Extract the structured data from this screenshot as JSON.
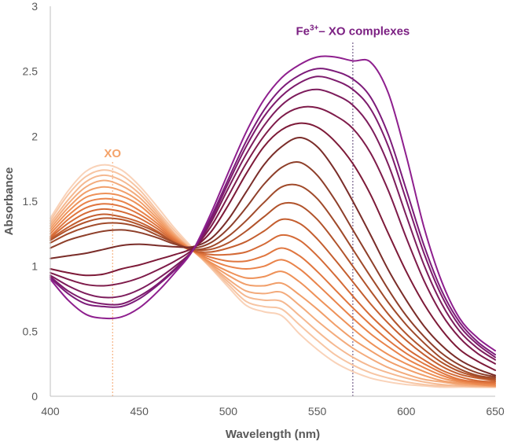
{
  "chart_data": {
    "type": "line",
    "title": "",
    "xlabel": "Wavelength (nm)",
    "ylabel": "Absorbance",
    "xlim": [
      400,
      650
    ],
    "ylim": [
      0,
      3
    ],
    "xticks": [
      400,
      450,
      500,
      550,
      600,
      650
    ],
    "yticks": [
      0,
      0.5,
      1,
      1.5,
      2,
      2.5,
      3
    ],
    "ytick_labels": [
      "0",
      "0.5",
      "1",
      "1.5",
      "2",
      "2.5",
      "3"
    ],
    "grid": false,
    "legend": "none",
    "x": [
      400,
      410,
      420,
      430,
      440,
      450,
      460,
      470,
      480,
      490,
      500,
      510,
      520,
      530,
      540,
      550,
      560,
      570,
      580,
      590,
      600,
      610,
      620,
      630,
      640,
      650
    ],
    "annotations": [
      {
        "label_parts": [
          "XO"
        ],
        "x": 435,
        "y_text": 1.84,
        "color": "#f4a36a"
      },
      {
        "label_parts": [
          "Fe",
          "3+",
          "– XO complexes"
        ],
        "x": 570,
        "y_text": 2.78,
        "color": "#7b1f82"
      }
    ],
    "reference_lines": [
      {
        "x": 435,
        "color": "#f4a36a"
      },
      {
        "x": 570,
        "color": "#5a3f73"
      }
    ],
    "series": [
      {
        "name": "s1",
        "color": "#f9d2b8",
        "values": [
          1.37,
          1.58,
          1.73,
          1.78,
          1.74,
          1.62,
          1.46,
          1.29,
          1.14,
          0.99,
          0.84,
          0.7,
          0.65,
          0.62,
          0.48,
          0.36,
          0.26,
          0.19,
          0.14,
          0.11,
          0.09,
          0.08,
          0.07,
          0.07,
          0.07,
          0.07
        ]
      },
      {
        "name": "s2",
        "color": "#f7c5a3",
        "values": [
          1.35,
          1.55,
          1.69,
          1.74,
          1.7,
          1.59,
          1.43,
          1.27,
          1.13,
          0.99,
          0.86,
          0.73,
          0.69,
          0.67,
          0.55,
          0.43,
          0.32,
          0.24,
          0.18,
          0.14,
          0.11,
          0.09,
          0.08,
          0.08,
          0.07,
          0.07
        ]
      },
      {
        "name": "s3",
        "color": "#f5b890",
        "values": [
          1.33,
          1.51,
          1.65,
          1.7,
          1.66,
          1.56,
          1.41,
          1.25,
          1.12,
          1.0,
          0.88,
          0.77,
          0.74,
          0.73,
          0.62,
          0.5,
          0.39,
          0.3,
          0.23,
          0.18,
          0.14,
          0.11,
          0.09,
          0.08,
          0.08,
          0.07
        ]
      },
      {
        "name": "s4",
        "color": "#f3ab7c",
        "values": [
          1.31,
          1.48,
          1.61,
          1.66,
          1.62,
          1.53,
          1.39,
          1.24,
          1.12,
          1.01,
          0.9,
          0.81,
          0.79,
          0.8,
          0.7,
          0.58,
          0.47,
          0.37,
          0.29,
          0.22,
          0.17,
          0.13,
          0.11,
          0.09,
          0.08,
          0.08
        ]
      },
      {
        "name": "s5",
        "color": "#f19e69",
        "values": [
          1.29,
          1.45,
          1.57,
          1.61,
          1.58,
          1.5,
          1.37,
          1.23,
          1.12,
          1.02,
          0.93,
          0.86,
          0.85,
          0.87,
          0.78,
          0.67,
          0.55,
          0.44,
          0.35,
          0.27,
          0.21,
          0.16,
          0.12,
          0.1,
          0.09,
          0.08
        ]
      },
      {
        "name": "s6",
        "color": "#ee9158",
        "values": [
          1.27,
          1.42,
          1.53,
          1.56,
          1.54,
          1.47,
          1.35,
          1.22,
          1.12,
          1.03,
          0.96,
          0.91,
          0.92,
          0.96,
          0.88,
          0.76,
          0.64,
          0.52,
          0.41,
          0.32,
          0.25,
          0.19,
          0.14,
          0.11,
          0.09,
          0.08
        ]
      },
      {
        "name": "s7",
        "color": "#e9834a",
        "values": [
          1.25,
          1.39,
          1.49,
          1.52,
          1.5,
          1.43,
          1.33,
          1.21,
          1.12,
          1.05,
          1.0,
          0.98,
          1.0,
          1.05,
          0.98,
          0.86,
          0.73,
          0.6,
          0.48,
          0.38,
          0.29,
          0.22,
          0.16,
          0.12,
          0.1,
          0.09
        ]
      },
      {
        "name": "s8",
        "color": "#e0763f",
        "values": [
          1.23,
          1.36,
          1.45,
          1.48,
          1.46,
          1.4,
          1.31,
          1.2,
          1.12,
          1.07,
          1.04,
          1.04,
          1.08,
          1.14,
          1.08,
          0.96,
          0.82,
          0.68,
          0.55,
          0.43,
          0.33,
          0.25,
          0.18,
          0.13,
          0.11,
          0.1
        ]
      },
      {
        "name": "s9",
        "color": "#d46a36",
        "values": [
          1.22,
          1.33,
          1.41,
          1.44,
          1.42,
          1.37,
          1.29,
          1.19,
          1.12,
          1.09,
          1.09,
          1.11,
          1.17,
          1.24,
          1.2,
          1.08,
          0.93,
          0.77,
          0.62,
          0.49,
          0.37,
          0.28,
          0.2,
          0.15,
          0.12,
          0.11
        ]
      },
      {
        "name": "s10",
        "color": "#c45e2f",
        "values": [
          1.21,
          1.3,
          1.37,
          1.4,
          1.38,
          1.34,
          1.27,
          1.18,
          1.12,
          1.11,
          1.14,
          1.19,
          1.27,
          1.36,
          1.33,
          1.21,
          1.05,
          0.88,
          0.71,
          0.56,
          0.43,
          0.32,
          0.23,
          0.17,
          0.14,
          0.12
        ]
      },
      {
        "name": "s11",
        "color": "#b1532b",
        "values": [
          1.2,
          1.28,
          1.34,
          1.37,
          1.36,
          1.32,
          1.26,
          1.18,
          1.13,
          1.13,
          1.18,
          1.27,
          1.38,
          1.48,
          1.47,
          1.36,
          1.19,
          1.0,
          0.81,
          0.63,
          0.48,
          0.36,
          0.26,
          0.19,
          0.15,
          0.13
        ]
      },
      {
        "name": "s12",
        "color": "#a04a2a",
        "values": [
          1.18,
          1.25,
          1.3,
          1.33,
          1.33,
          1.3,
          1.24,
          1.18,
          1.13,
          1.15,
          1.23,
          1.35,
          1.49,
          1.61,
          1.62,
          1.52,
          1.34,
          1.13,
          0.92,
          0.72,
          0.55,
          0.41,
          0.29,
          0.21,
          0.16,
          0.14
        ]
      },
      {
        "name": "s13",
        "color": "#8e3f2a",
        "values": [
          1.14,
          1.2,
          1.24,
          1.27,
          1.28,
          1.26,
          1.22,
          1.17,
          1.14,
          1.18,
          1.29,
          1.45,
          1.63,
          1.76,
          1.8,
          1.7,
          1.51,
          1.28,
          1.05,
          0.82,
          0.62,
          0.46,
          0.33,
          0.24,
          0.18,
          0.15
        ]
      },
      {
        "name": "s14",
        "color": "#7a2d29",
        "values": [
          1.06,
          1.08,
          1.1,
          1.13,
          1.16,
          1.17,
          1.16,
          1.15,
          1.15,
          1.21,
          1.36,
          1.57,
          1.78,
          1.92,
          1.99,
          1.92,
          1.74,
          1.5,
          1.24,
          0.97,
          0.74,
          0.54,
          0.39,
          0.28,
          0.21,
          0.16
        ]
      },
      {
        "name": "s15",
        "color": "#7d1a38",
        "values": [
          0.98,
          0.95,
          0.93,
          0.94,
          0.98,
          1.01,
          1.05,
          1.09,
          1.14,
          1.26,
          1.47,
          1.71,
          1.92,
          2.05,
          2.1,
          2.07,
          1.96,
          1.79,
          1.55,
          1.25,
          0.96,
          0.71,
          0.51,
          0.36,
          0.27,
          0.2
        ]
      },
      {
        "name": "s16",
        "color": "#7e1b4a",
        "values": [
          0.95,
          0.9,
          0.86,
          0.85,
          0.87,
          0.91,
          0.97,
          1.04,
          1.13,
          1.3,
          1.54,
          1.79,
          2.0,
          2.15,
          2.22,
          2.22,
          2.16,
          2.06,
          1.87,
          1.58,
          1.22,
          0.89,
          0.63,
          0.45,
          0.33,
          0.25
        ]
      },
      {
        "name": "s17",
        "color": "#7d1c5c",
        "values": [
          0.93,
          0.85,
          0.79,
          0.76,
          0.77,
          0.82,
          0.9,
          1.0,
          1.12,
          1.33,
          1.6,
          1.86,
          2.08,
          2.24,
          2.33,
          2.36,
          2.32,
          2.24,
          2.07,
          1.78,
          1.39,
          1.01,
          0.71,
          0.5,
          0.37,
          0.28
        ]
      },
      {
        "name": "s18",
        "color": "#7d1b6c",
        "values": [
          0.92,
          0.81,
          0.74,
          0.71,
          0.71,
          0.77,
          0.86,
          0.98,
          1.12,
          1.35,
          1.64,
          1.92,
          2.15,
          2.31,
          2.41,
          2.46,
          2.43,
          2.36,
          2.21,
          1.92,
          1.51,
          1.1,
          0.77,
          0.54,
          0.4,
          0.3
        ]
      },
      {
        "name": "s19",
        "color": "#7c1b79",
        "values": [
          0.91,
          0.79,
          0.71,
          0.69,
          0.69,
          0.75,
          0.85,
          0.97,
          1.12,
          1.37,
          1.67,
          1.96,
          2.2,
          2.37,
          2.47,
          2.52,
          2.5,
          2.44,
          2.3,
          2.01,
          1.59,
          1.16,
          0.81,
          0.57,
          0.42,
          0.32
        ]
      },
      {
        "name": "s20",
        "color": "#8e1f8e",
        "values": [
          0.9,
          0.74,
          0.63,
          0.6,
          0.61,
          0.68,
          0.8,
          0.95,
          1.12,
          1.4,
          1.72,
          2.03,
          2.28,
          2.45,
          2.55,
          2.61,
          2.61,
          2.58,
          2.57,
          2.33,
          1.85,
          1.3,
          0.88,
          0.6,
          0.45,
          0.35
        ]
      }
    ]
  }
}
